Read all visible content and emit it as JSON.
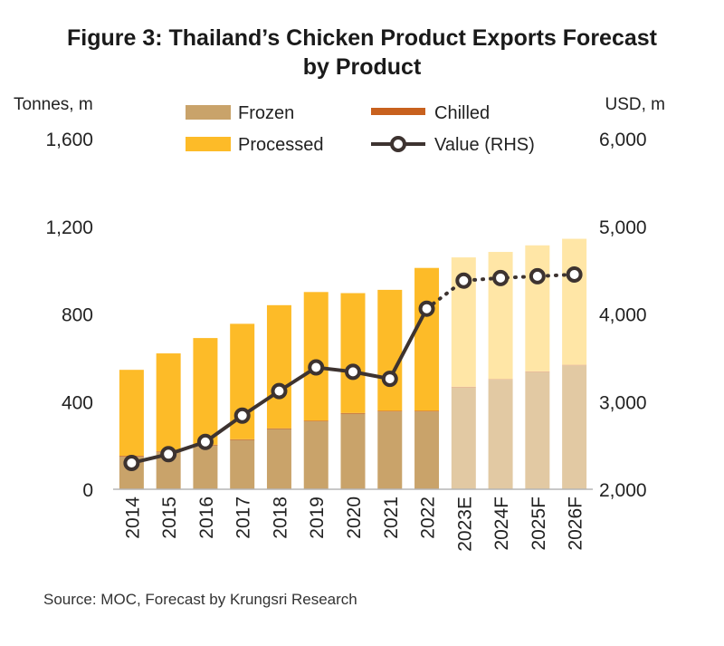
{
  "title_line1": "Figure 3: Thailand’s Chicken Product Exports Forecast",
  "title_line2": "by Product",
  "source": "Source: MOC, Forecast by Krungsri Research",
  "colors": {
    "frozen": "#c9a36a",
    "frozen_forecast": "#e2c9a3",
    "chilled": "#c8611e",
    "chilled_forecast": "#e8b08a",
    "processed": "#fdbb28",
    "processed_forecast": "#ffe6a6",
    "value_line": "#3d3330"
  },
  "chart_data": {
    "type": "bar",
    "stacked": true,
    "title": "Figure 3: Thailand’s Chicken Product Exports Forecast by Product",
    "ylabel_left": "Tonnes,  m",
    "ylabel_right": "USD, m",
    "ylim_left": [
      0,
      1600
    ],
    "ylim_right": [
      2000,
      6000
    ],
    "yticks_left": [
      "0",
      "400",
      "800",
      "1,200",
      "1,600"
    ],
    "yticks_right": [
      "2,000",
      "3,000",
      "4,000",
      "5,000",
      "6,000"
    ],
    "categories": [
      "2014",
      "2015",
      "2016",
      "2017",
      "2018",
      "2019",
      "2020",
      "2021",
      "2022",
      "2023E",
      "2024F",
      "2025F",
      "2026F"
    ],
    "forecast_start_index": 9,
    "legend_position": "top",
    "series": [
      {
        "name": "Frozen",
        "axis": "left",
        "values": [
          150,
          170,
          200,
          225,
          275,
          310,
          345,
          355,
          355,
          465,
          500,
          535,
          565
        ]
      },
      {
        "name": "Chilled",
        "axis": "left",
        "values": [
          3,
          3,
          3,
          3,
          3,
          3,
          3,
          3,
          3,
          3,
          3,
          3,
          3
        ]
      },
      {
        "name": "Processed",
        "axis": "left",
        "values": [
          392,
          447,
          487,
          527,
          562,
          587,
          547,
          552,
          652,
          590,
          580,
          575,
          575
        ]
      },
      {
        "name": "Value (RHS)",
        "axis": "right",
        "type": "line",
        "values": [
          2300,
          2400,
          2540,
          2840,
          3120,
          3390,
          3340,
          3260,
          4060,
          4380,
          4410,
          4430,
          4450
        ]
      }
    ],
    "grid": false
  }
}
